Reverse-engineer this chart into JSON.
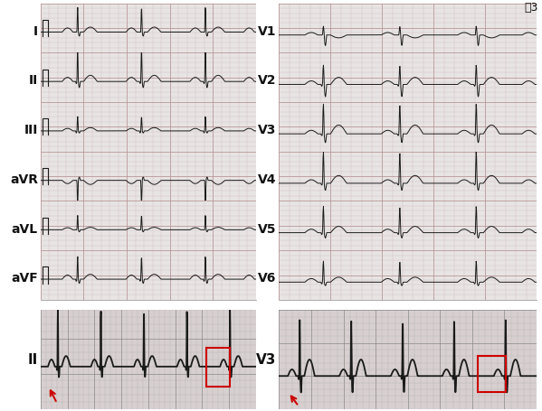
{
  "title": "図3",
  "leads_left": [
    "I",
    "II",
    "III",
    "aVR",
    "aVL",
    "aVF"
  ],
  "leads_right": [
    "V1",
    "V2",
    "V3",
    "V4",
    "V5",
    "V6"
  ],
  "bg_color": "#ffffff",
  "ecg_bg": "#e8e4e4",
  "grid_minor_color": "#ccbbbb",
  "grid_major_color": "#b89898",
  "line_color": "#1a1a1a",
  "text_color": "#111111",
  "red_color": "#cc0000",
  "rhythm_bg": "#d8d0d0",
  "label_fontsize": 10,
  "title_fontsize": 9
}
